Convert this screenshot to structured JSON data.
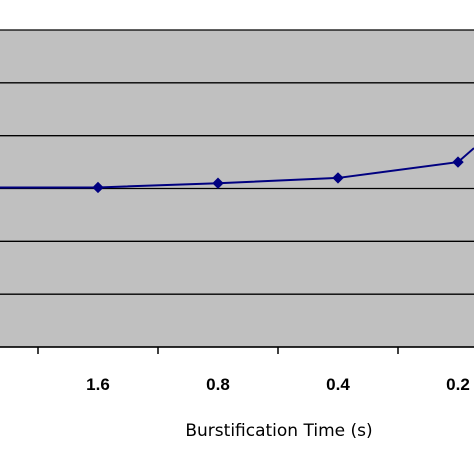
{
  "chart_data": {
    "type": "line",
    "title": "",
    "xlabel": "Burstification Time (s)",
    "ylabel": "",
    "categories": [
      "1.6",
      "0.8",
      "0.4",
      "0.2"
    ],
    "series": [
      {
        "values": [
          0.02,
          0.1,
          0.2,
          0.5
        ]
      }
    ],
    "ylim": [
      -3,
      3
    ],
    "grid": true,
    "colors": {
      "plot_background": "#c0c0c0",
      "line": "#000080",
      "gridline": "#000000"
    }
  }
}
